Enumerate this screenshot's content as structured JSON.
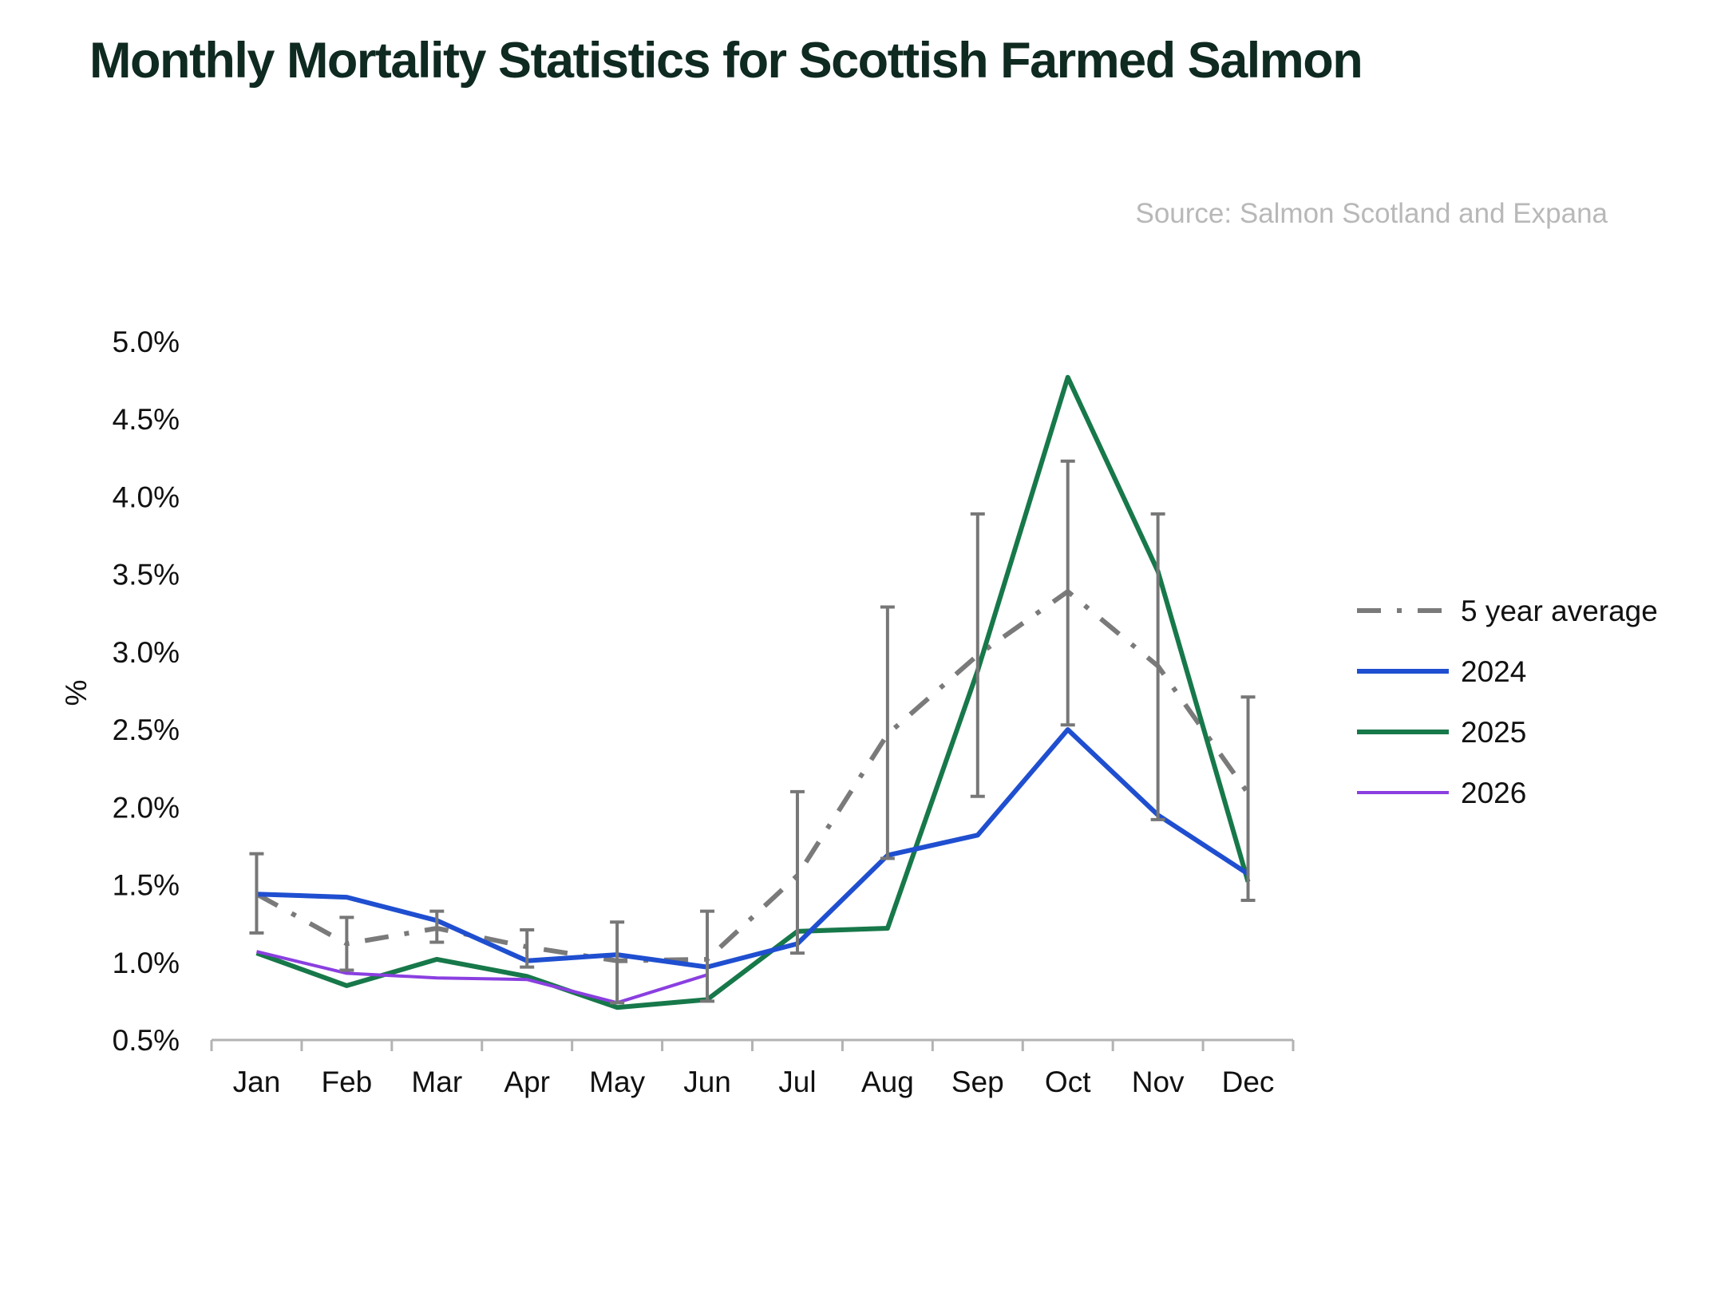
{
  "chart_data": {
    "type": "line",
    "title": "Monthly Mortality Statistics for Scottish Farmed Salmon",
    "source": "Source: Salmon Scotland and Expana",
    "xlabel": "",
    "ylabel": "%",
    "categories": [
      "Jan",
      "Feb",
      "Mar",
      "Apr",
      "May",
      "Jun",
      "Jul",
      "Aug",
      "Sep",
      "Oct",
      "Nov",
      "Dec"
    ],
    "ylim": [
      0.5,
      5.0
    ],
    "y_ticks": [
      0.5,
      1.0,
      1.5,
      2.0,
      2.5,
      3.0,
      3.5,
      4.0,
      4.5,
      5.0
    ],
    "y_tick_labels": [
      "0.5%",
      "1.0%",
      "1.5%",
      "2.0%",
      "2.5%",
      "3.0%",
      "3.5%",
      "4.0%",
      "4.5%",
      "5.0%"
    ],
    "grid": false,
    "legend_position": "right",
    "series": [
      {
        "name": "5 year average",
        "color": "#7a7a7a",
        "style": "dash-dot",
        "values": [
          1.44,
          1.12,
          1.22,
          1.1,
          1.01,
          1.02,
          1.56,
          2.47,
          2.98,
          3.39,
          2.91,
          2.09
        ],
        "error_low": [
          1.19,
          0.95,
          1.13,
          0.97,
          0.74,
          0.75,
          1.06,
          1.67,
          2.07,
          2.53,
          1.92,
          1.4
        ],
        "error_high": [
          1.7,
          1.29,
          1.33,
          1.21,
          1.26,
          1.33,
          2.1,
          3.29,
          3.89,
          4.23,
          3.89,
          2.71
        ]
      },
      {
        "name": "2024",
        "color": "#1f4fd0",
        "style": "solid",
        "values": [
          1.44,
          1.42,
          1.27,
          1.01,
          1.05,
          0.97,
          1.12,
          1.69,
          1.82,
          2.5,
          1.95,
          1.57
        ]
      },
      {
        "name": "2025",
        "color": "#17784a",
        "style": "solid",
        "values": [
          1.06,
          0.85,
          1.02,
          0.91,
          0.71,
          0.76,
          1.2,
          1.22,
          2.88,
          4.77,
          3.52,
          1.52
        ]
      },
      {
        "name": "2026",
        "color": "#8a3fe0",
        "style": "solid-thin",
        "values": [
          1.07,
          0.93,
          0.9,
          0.89,
          0.74,
          0.92,
          null,
          null,
          null,
          null,
          null,
          null
        ]
      }
    ]
  }
}
